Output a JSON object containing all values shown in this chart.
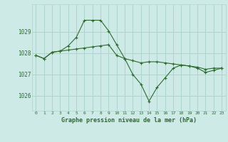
{
  "title": "Graphe pression niveau de la mer (hPa)",
  "bg_color": "#ceeae7",
  "grid_color": "#aed4d0",
  "line_color": "#2d6a2d",
  "xlim": [
    -0.5,
    23.5
  ],
  "ylim": [
    1025.3,
    1030.3
  ],
  "yticks": [
    1026,
    1027,
    1028,
    1029
  ],
  "xticks": [
    0,
    1,
    2,
    3,
    4,
    5,
    6,
    7,
    8,
    9,
    10,
    11,
    12,
    13,
    14,
    15,
    16,
    17,
    18,
    19,
    20,
    21,
    22,
    23
  ],
  "line1_x": [
    0,
    1,
    2,
    3,
    4,
    5,
    6,
    7,
    8,
    9,
    10,
    11,
    12,
    13,
    14,
    15,
    16,
    17,
    18,
    19,
    20,
    21,
    22,
    23
  ],
  "line1_y": [
    1027.9,
    1027.75,
    1028.05,
    1028.1,
    1028.15,
    1028.2,
    1028.25,
    1028.3,
    1028.35,
    1028.4,
    1027.9,
    1027.75,
    1027.65,
    1027.55,
    1027.6,
    1027.6,
    1027.55,
    1027.5,
    1027.45,
    1027.4,
    1027.35,
    1027.25,
    1027.3,
    1027.3
  ],
  "line2_x": [
    0,
    1,
    2,
    3,
    4,
    5,
    6,
    7,
    8,
    9,
    10,
    11,
    12,
    13,
    14,
    15,
    16,
    17,
    18,
    19,
    20,
    21,
    22,
    23
  ],
  "line2_y": [
    1027.9,
    1027.75,
    1028.05,
    1028.1,
    1028.35,
    1028.75,
    1029.55,
    1029.55,
    1029.55,
    1029.05,
    1028.4,
    1027.75,
    1027.0,
    1026.55,
    1025.75,
    1026.4,
    1026.85,
    1027.3,
    1027.45,
    1027.4,
    1027.3,
    1027.1,
    1027.2,
    1027.3
  ]
}
